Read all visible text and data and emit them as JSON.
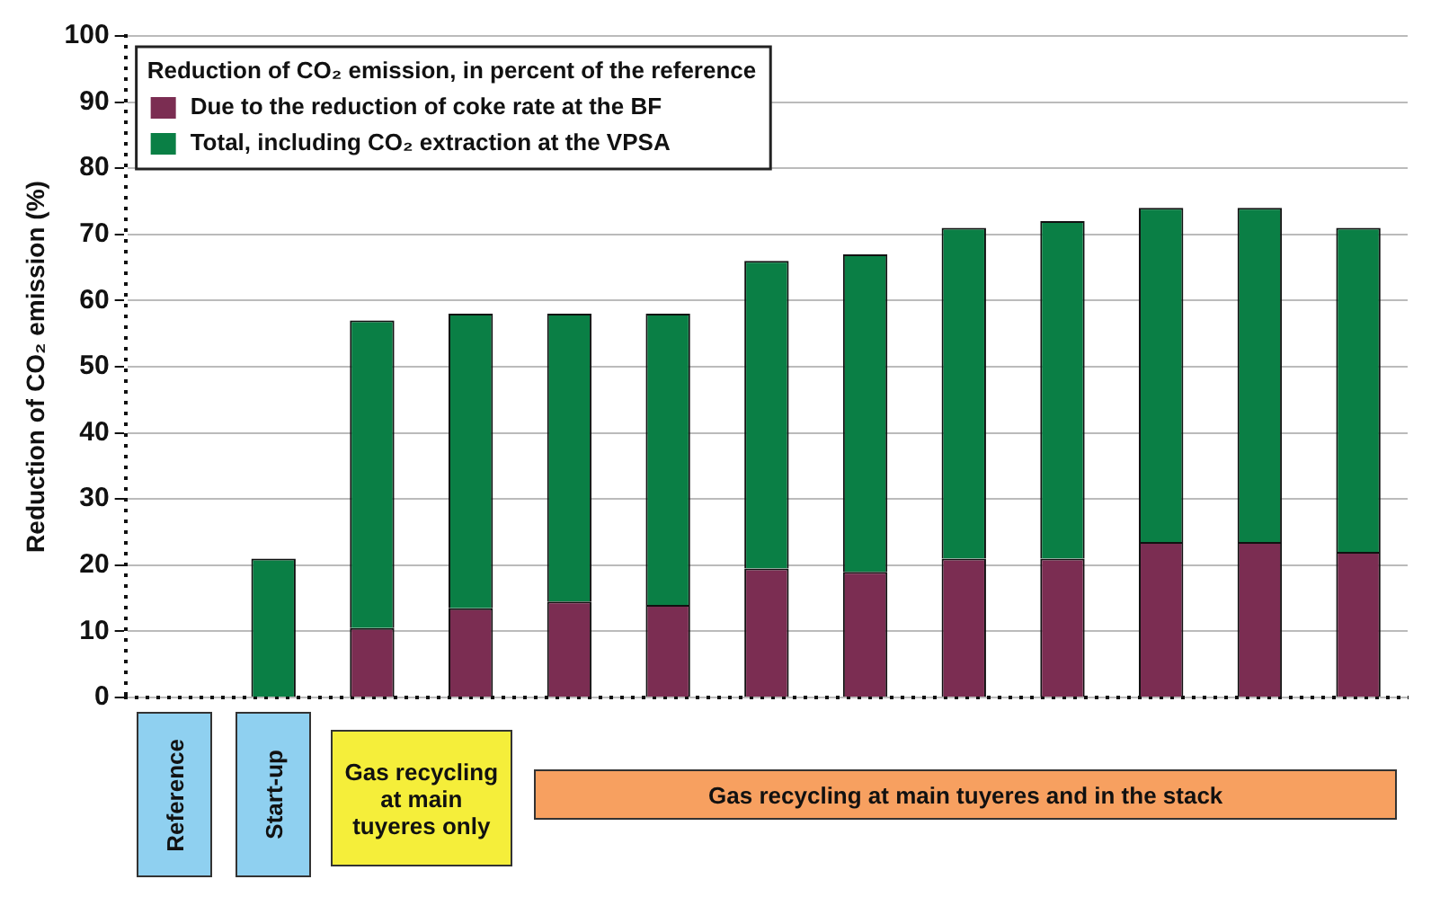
{
  "chart_data": {
    "type": "bar",
    "stacked": true,
    "categories": [
      null,
      null,
      null,
      null,
      null,
      null,
      null,
      null,
      null,
      null,
      null,
      null,
      null
    ],
    "series": [
      {
        "name": "Due to the reduction of coke rate at the BF",
        "color": "#7b2d52",
        "values": [
          0,
          0,
          10.5,
          13.5,
          14.5,
          14,
          19.5,
          19,
          21,
          21,
          23.5,
          23.5,
          22
        ]
      },
      {
        "name": "Total, including CO₂ extraction at the VPSA",
        "color": "#0a7f45",
        "values": [
          0,
          21,
          46.5,
          44.5,
          43.5,
          44,
          46.5,
          48,
          50,
          51,
          50.5,
          50.5,
          49
        ]
      }
    ],
    "legend_title": "Reduction of CO₂ emission, in percent of the reference",
    "legend": "top left",
    "ylabel": "Reduction of CO₂ emission (%)",
    "ylim": [
      0,
      100
    ],
    "yticks": [
      0,
      10,
      20,
      30,
      40,
      50,
      60,
      70,
      80,
      90,
      100
    ],
    "grid": "y",
    "annotations": [
      "Reference",
      "Start-up",
      "Gas recycling at main tuyeres only",
      "Gas recycling at main tuyeres and in the stack"
    ]
  }
}
